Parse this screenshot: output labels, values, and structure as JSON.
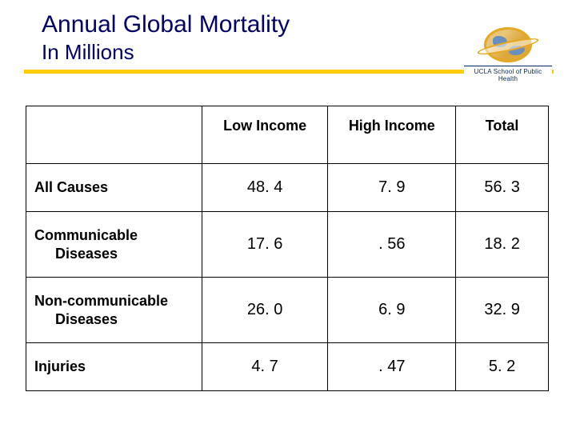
{
  "header": {
    "title": "Annual Global Mortality",
    "subtitle": "In Millions",
    "logo_caption": "UCLA School of Public Health"
  },
  "style": {
    "title_color": "#000066",
    "accent_bar_color": "#ffcc00",
    "table_border_color": "#000000",
    "background_color": "#ffffff",
    "header_fontsize": 18,
    "cell_fontsize": 20,
    "title_fontsize": 30,
    "subtitle_fontsize": 26
  },
  "table": {
    "type": "table",
    "columns": [
      "Low Income",
      "High Income",
      "Total"
    ],
    "col_alignment": [
      "center",
      "center",
      "center"
    ],
    "rows": [
      {
        "label_lines": [
          "All Causes"
        ],
        "values": [
          "48. 4",
          "7. 9",
          "56. 3"
        ]
      },
      {
        "label_lines": [
          "Communicable",
          "Diseases"
        ],
        "values": [
          "17. 6",
          ". 56",
          "18. 2"
        ]
      },
      {
        "label_lines": [
          "Non-communicable",
          "Diseases"
        ],
        "values": [
          "26. 0",
          "6. 9",
          "32. 9"
        ]
      },
      {
        "label_lines": [
          "Injuries"
        ],
        "values": [
          "4. 7",
          ". 47",
          "5. 2"
        ]
      }
    ]
  }
}
